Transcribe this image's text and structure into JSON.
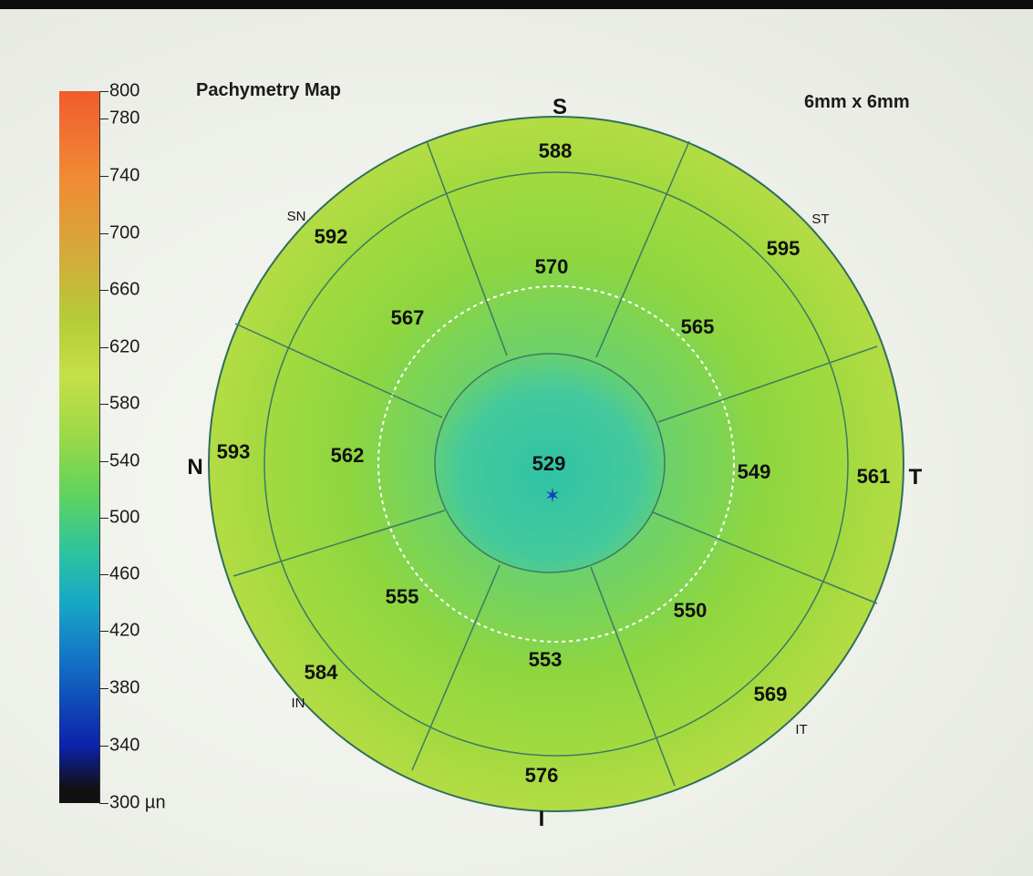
{
  "window": {
    "title": "Pachymetry Map",
    "scan_size": "6mm x 6mm"
  },
  "colorbar": {
    "ticks": [
      "800",
      "780",
      "740",
      "700",
      "660",
      "620",
      "580",
      "540",
      "500",
      "460",
      "420",
      "380",
      "340",
      "300 µn"
    ]
  },
  "orientation": {
    "superior": "S",
    "inferior": "I",
    "nasal": "N",
    "temporal": "T"
  },
  "quadrant_labels": {
    "sn": "SN",
    "st": "ST",
    "in": "IN",
    "it": "IT"
  },
  "sectors": {
    "center": "529",
    "inner": {
      "superior": "570",
      "superotemporal": "565",
      "temporal": "549",
      "inferotemporal": "550",
      "inferior": "553",
      "inferonasal": "555",
      "nasal": "562",
      "superonasal": "567"
    },
    "outer": {
      "superior": "588",
      "superotemporal": "595",
      "temporal": "561",
      "inferotemporal": "569",
      "inferior": "576",
      "inferonasal": "584",
      "nasal": "593",
      "superonasal": "592"
    }
  },
  "colors": {
    "map_green": "#8ed640",
    "center_cyan": "#41c9a0",
    "outline": "#336b5a"
  }
}
